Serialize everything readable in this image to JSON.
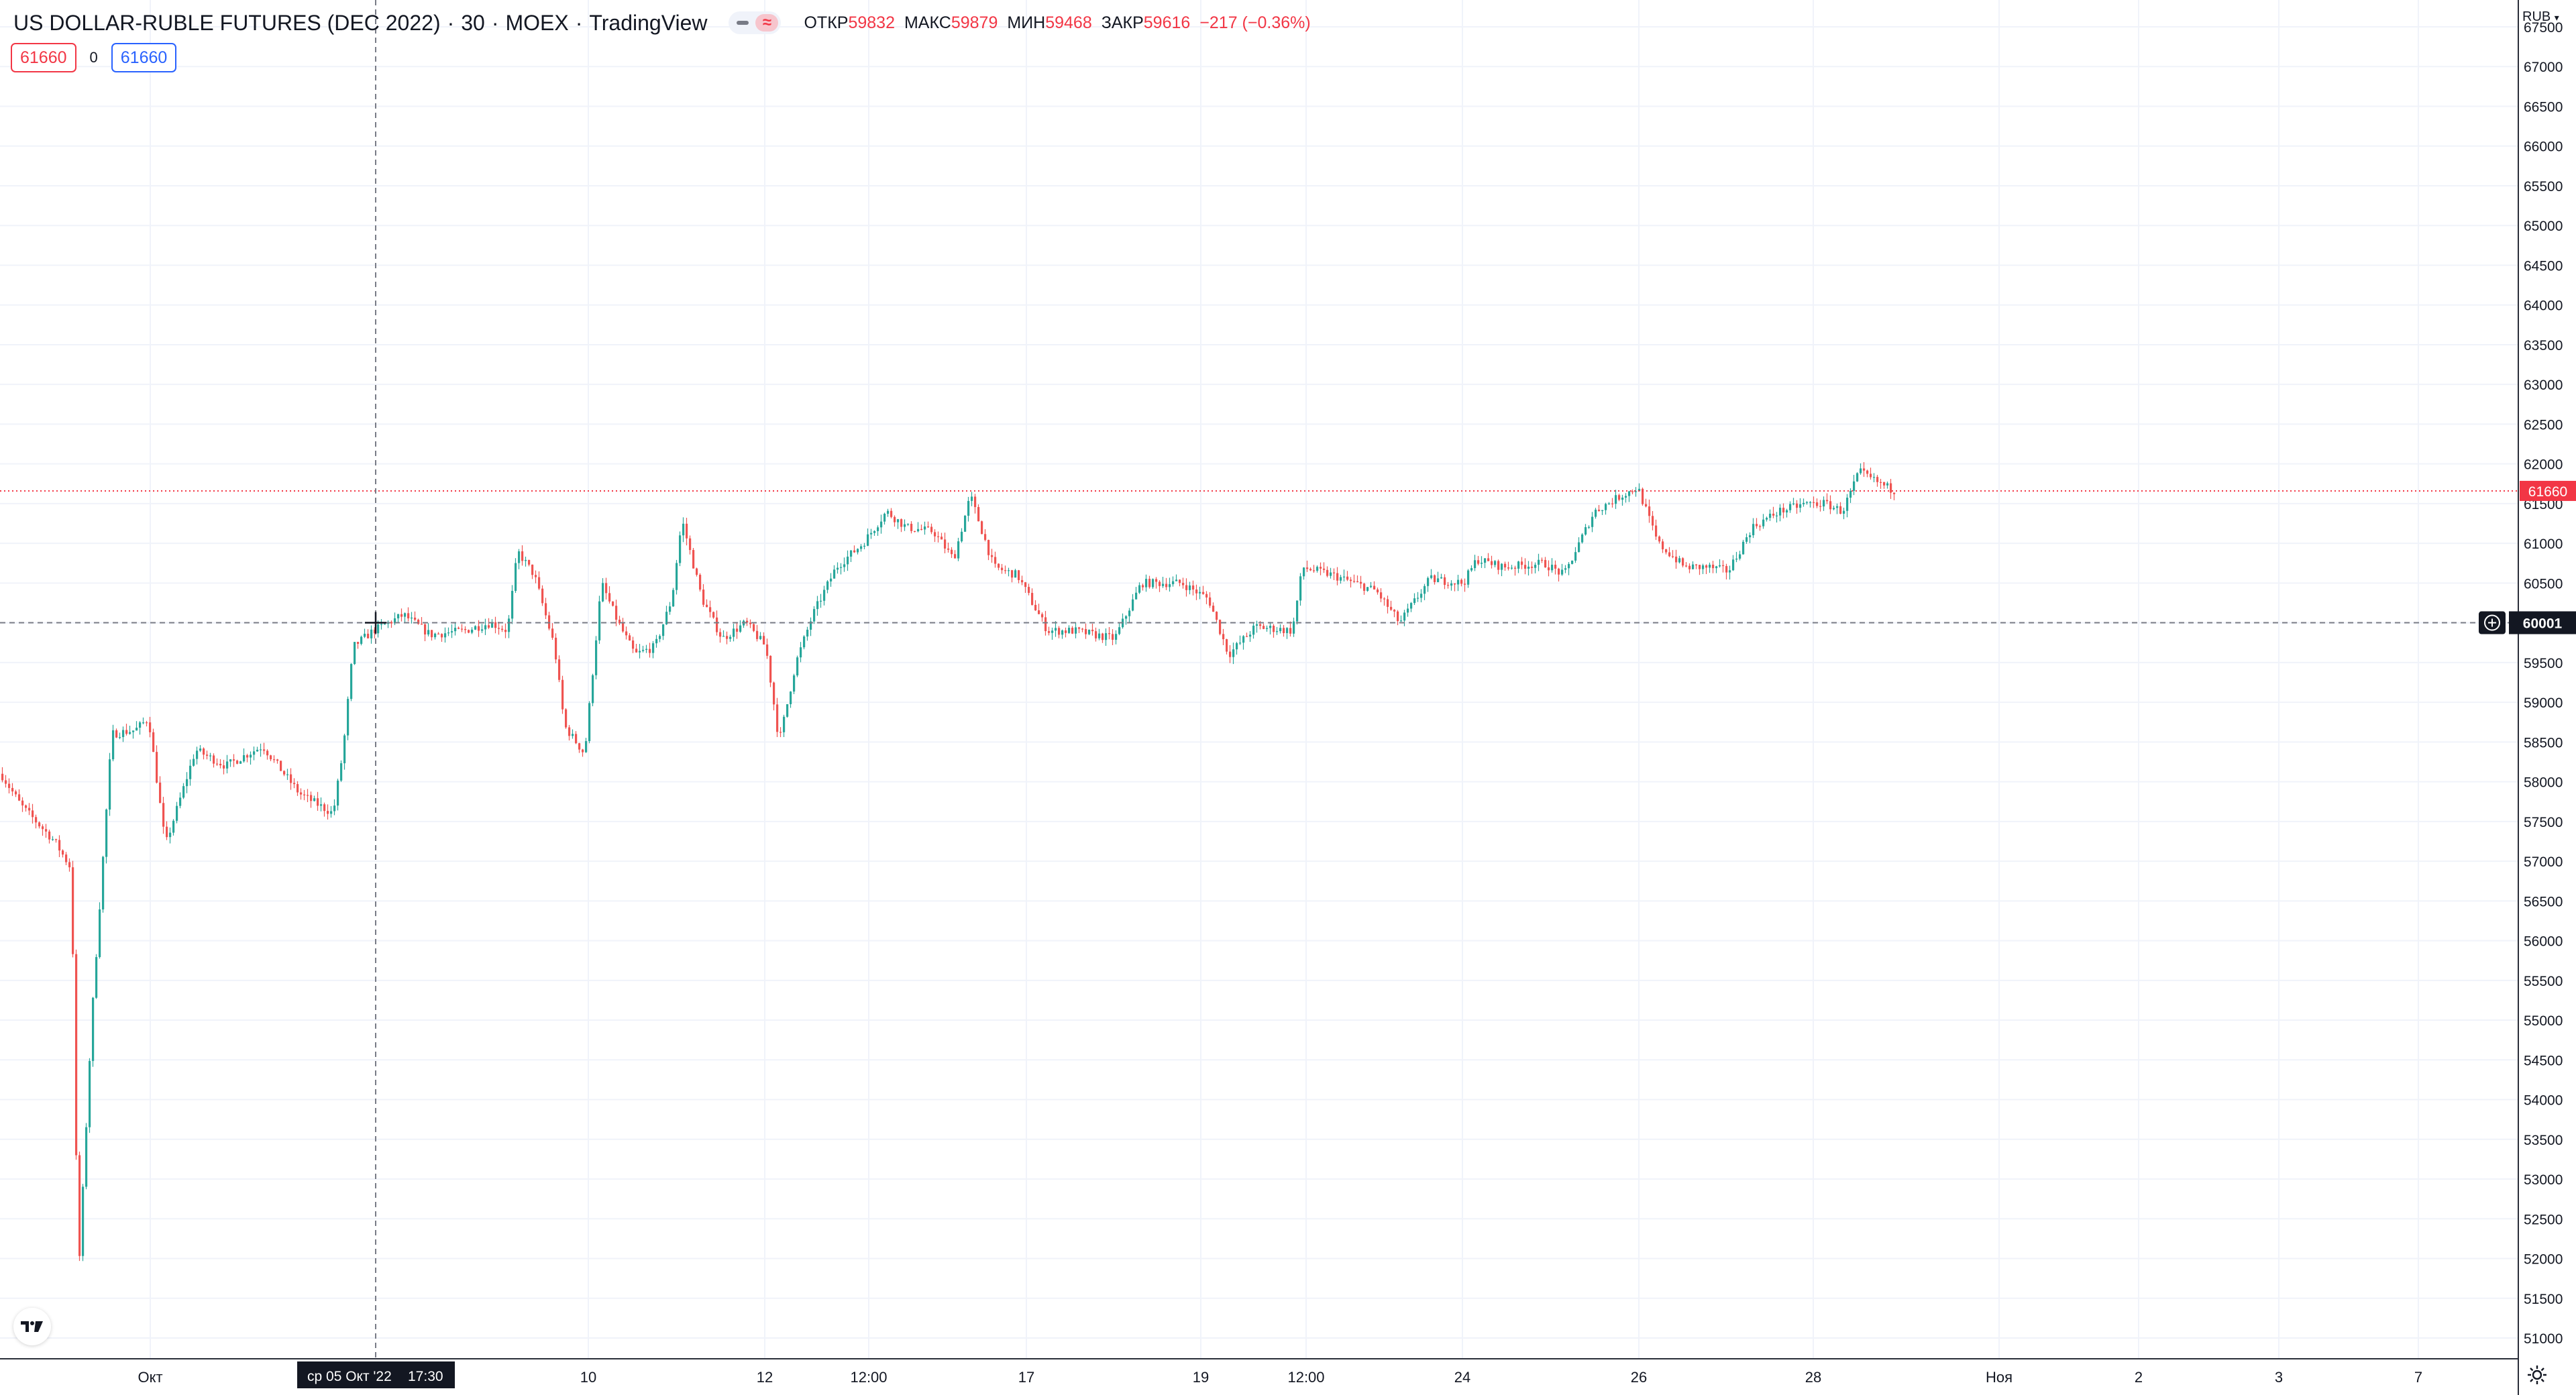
{
  "header": {
    "symbol": "US DOLLAR-RUBLE FUTURES (DEC 2022)",
    "separator": "·",
    "interval": "30",
    "exchange": "MOEX",
    "source": "TradingView",
    "ohlc": {
      "open_label": "ОТКР",
      "open": "59832",
      "high_label": "МАКС",
      "high": "59879",
      "low_label": "МИН",
      "low": "59468",
      "close_label": "ЗАКР",
      "close": "59616",
      "change": "−217 (−0.36%)"
    }
  },
  "trade": {
    "sell_price": "61660",
    "spread": "0",
    "buy_price": "61660"
  },
  "price_scale": {
    "currency": "RUB",
    "last_price": "61660",
    "crosshair_price": "60001"
  },
  "time_scale": {
    "crosshair_date": "ср 05 Окт '22",
    "crosshair_time": "17:30"
  },
  "colors": {
    "up": "#26a69a",
    "down": "#ef5350",
    "last_price": "#f23645",
    "buy": "#2962ff",
    "crosshair_label": "#131722"
  },
  "chart_data": {
    "type": "candlestick",
    "currency": "RUB",
    "y_ticks": [
      "51000",
      "51500",
      "52000",
      "52500",
      "53000",
      "53500",
      "54000",
      "54500",
      "55000",
      "55500",
      "56000",
      "56500",
      "57000",
      "57500",
      "58000",
      "58500",
      "59000",
      "59500",
      "60000",
      "60500",
      "61000",
      "61500",
      "62000",
      "62500",
      "63000",
      "63500",
      "64000",
      "64500",
      "65000",
      "65500",
      "66000",
      "66500",
      "67000",
      "67500"
    ],
    "x_ticks": [
      "Окт",
      "10",
      "12",
      "12:00",
      "17",
      "19",
      "12:00",
      "24",
      "26",
      "28",
      "Ноя",
      "2",
      "3",
      "7"
    ],
    "ylim": [
      50800,
      67650
    ],
    "last_price": 61660,
    "crosshair_price": 60001,
    "grid": true,
    "price_path": [
      [
        0,
        58100
      ],
      [
        30,
        57700
      ],
      [
        80,
        57250
      ],
      [
        105,
        56900
      ],
      [
        115,
        51700
      ],
      [
        135,
        55000
      ],
      [
        165,
        58600
      ],
      [
        200,
        58650
      ],
      [
        220,
        58800
      ],
      [
        245,
        57200
      ],
      [
        290,
        58400
      ],
      [
        335,
        58200
      ],
      [
        390,
        58450
      ],
      [
        445,
        57850
      ],
      [
        495,
        57600
      ],
      [
        510,
        58400
      ],
      [
        525,
        59700
      ],
      [
        555,
        59900
      ],
      [
        600,
        60100
      ],
      [
        640,
        59850
      ],
      [
        690,
        59900
      ],
      [
        730,
        60000
      ],
      [
        755,
        59900
      ],
      [
        770,
        60900
      ],
      [
        795,
        60600
      ],
      [
        825,
        59700
      ],
      [
        840,
        58700
      ],
      [
        870,
        58350
      ],
      [
        895,
        60500
      ],
      [
        920,
        60000
      ],
      [
        945,
        59600
      ],
      [
        975,
        59700
      ],
      [
        1000,
        60300
      ],
      [
        1015,
        61300
      ],
      [
        1045,
        60300
      ],
      [
        1075,
        59800
      ],
      [
        1110,
        60000
      ],
      [
        1140,
        59700
      ],
      [
        1160,
        58500
      ],
      [
        1185,
        59500
      ],
      [
        1210,
        60100
      ],
      [
        1245,
        60700
      ],
      [
        1285,
        61000
      ],
      [
        1320,
        61400
      ],
      [
        1350,
        61200
      ],
      [
        1390,
        61150
      ],
      [
        1420,
        60800
      ],
      [
        1445,
        61600
      ],
      [
        1480,
        60700
      ],
      [
        1515,
        60600
      ],
      [
        1560,
        59900
      ],
      [
        1600,
        59900
      ],
      [
        1660,
        59800
      ],
      [
        1700,
        60500
      ],
      [
        1760,
        60500
      ],
      [
        1800,
        60300
      ],
      [
        1830,
        59600
      ],
      [
        1870,
        59950
      ],
      [
        1925,
        59900
      ],
      [
        1940,
        60700
      ],
      [
        1985,
        60600
      ],
      [
        2050,
        60400
      ],
      [
        2085,
        60000
      ],
      [
        2130,
        60550
      ],
      [
        2180,
        60500
      ],
      [
        2200,
        60800
      ],
      [
        2240,
        60700
      ],
      [
        2300,
        60750
      ],
      [
        2330,
        60600
      ],
      [
        2375,
        61400
      ],
      [
        2415,
        61600
      ],
      [
        2440,
        61700
      ],
      [
        2470,
        61000
      ],
      [
        2510,
        60700
      ],
      [
        2545,
        60700
      ],
      [
        2575,
        60650
      ],
      [
        2610,
        61200
      ],
      [
        2650,
        61400
      ],
      [
        2690,
        61500
      ],
      [
        2720,
        61500
      ],
      [
        2745,
        61400
      ],
      [
        2770,
        61900
      ],
      [
        2790,
        61800
      ],
      [
        2825,
        61650
      ]
    ]
  }
}
